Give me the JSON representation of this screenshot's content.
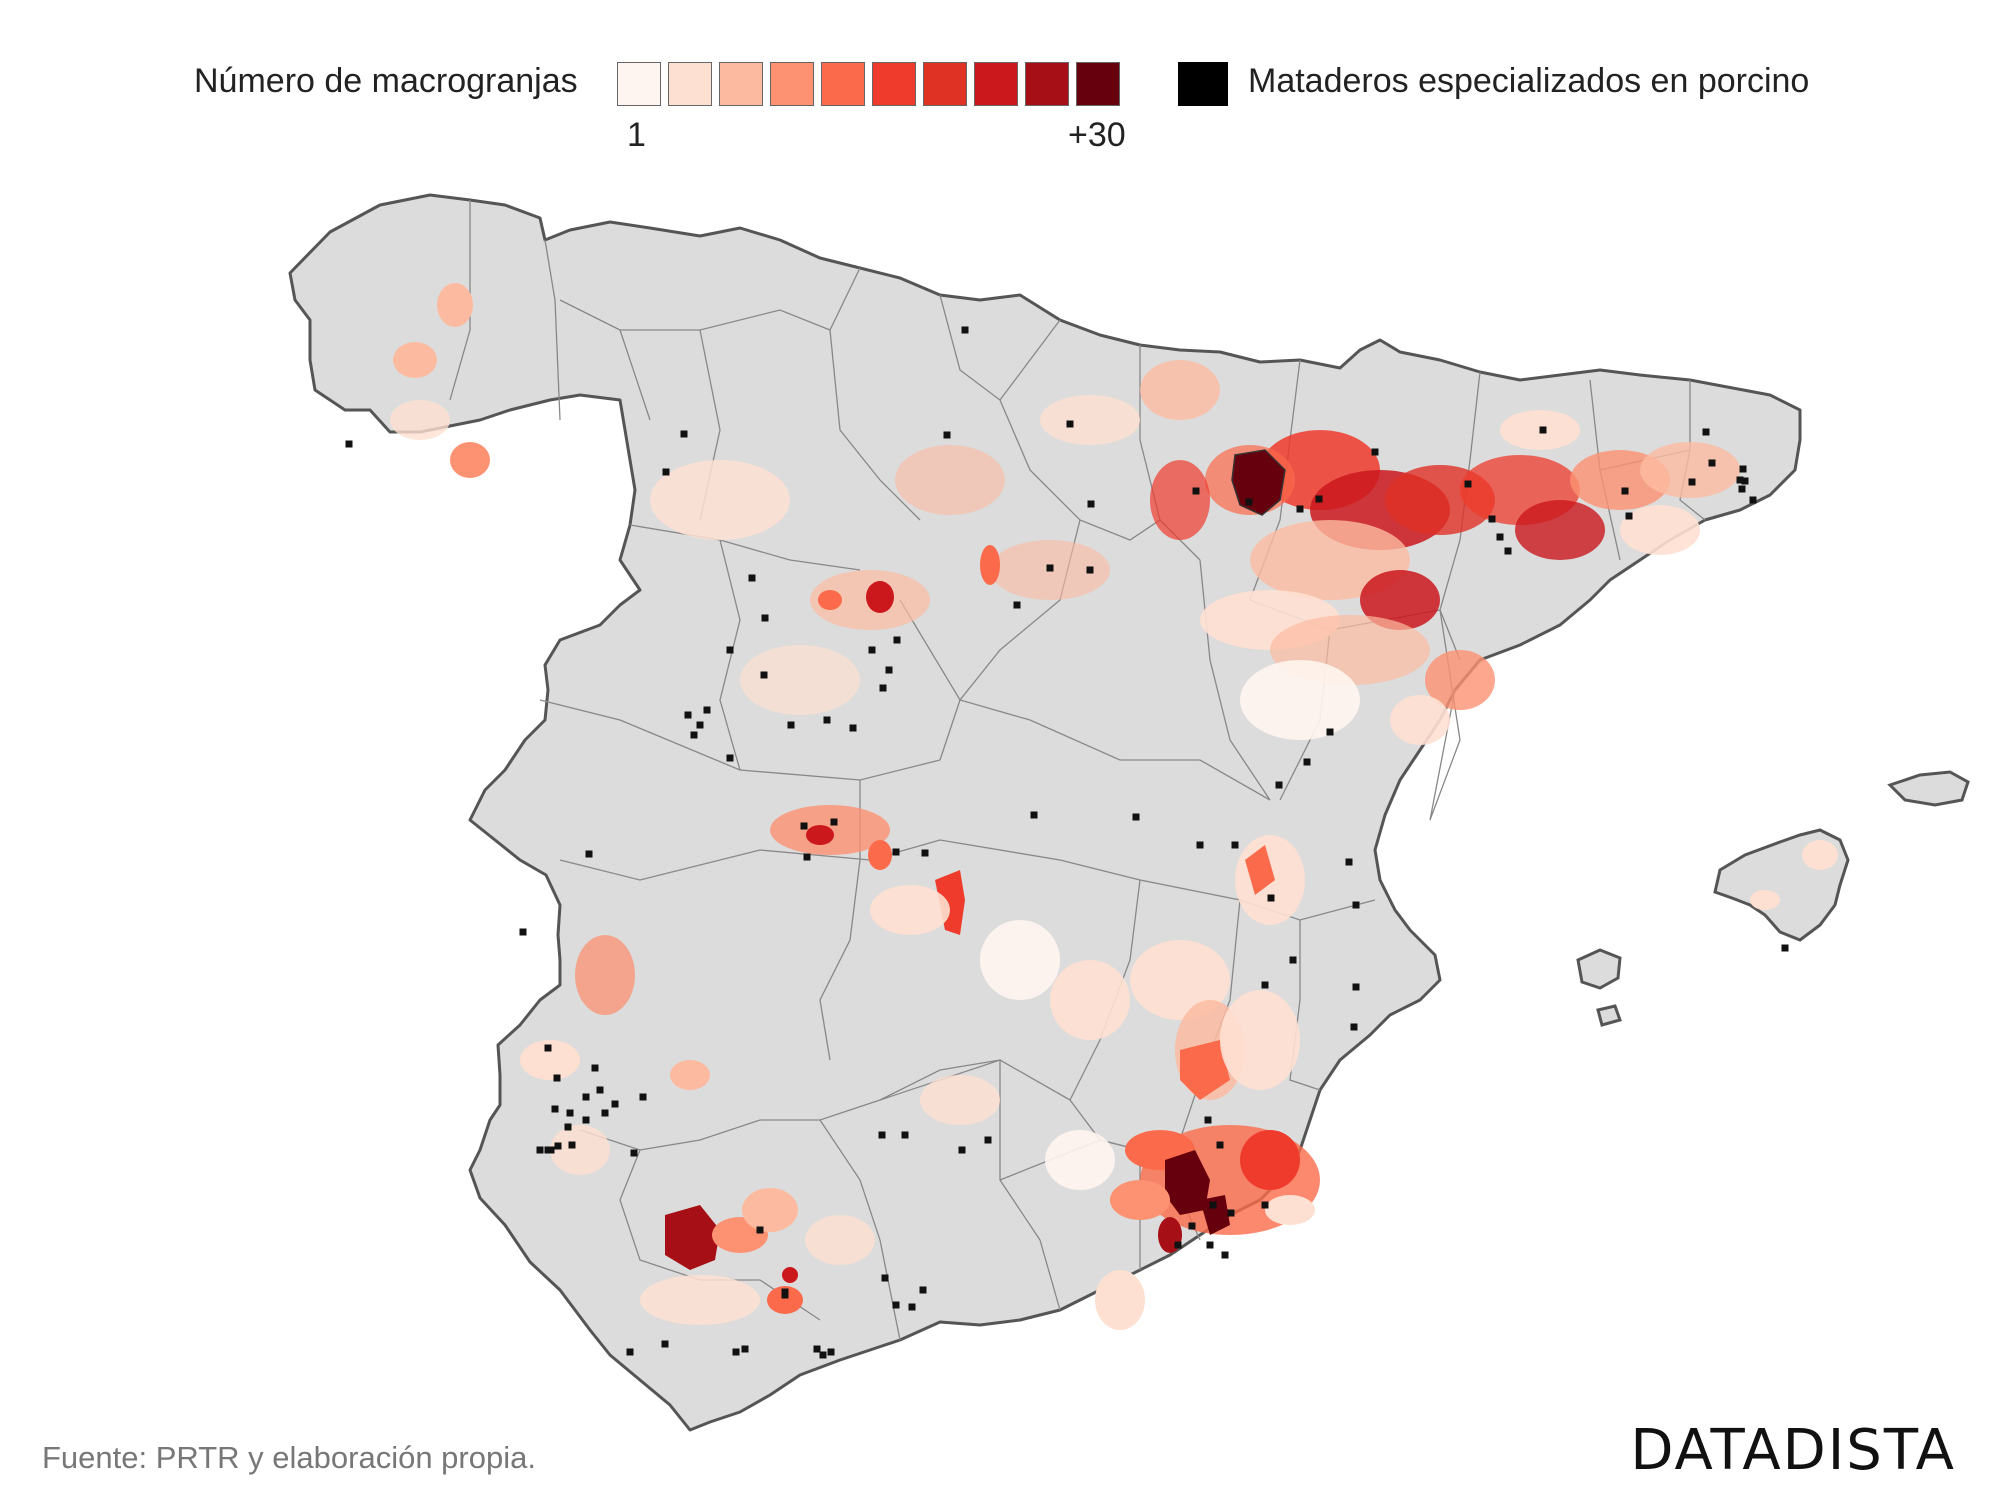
{
  "legend": {
    "farms_title": "Número de macrogranjas",
    "min_label": "1",
    "max_label": "+30",
    "ramp_colors": [
      "#fff5f0",
      "#fee0d2",
      "#fcbba1",
      "#fc9272",
      "#fb6a4a",
      "#ef3b2c",
      "#e03125",
      "#cb181d",
      "#a50f15",
      "#67000d"
    ],
    "slaughterhouse_label": "Mataderos especializados en porcino",
    "slaughterhouse_color": "#000000"
  },
  "map": {
    "land_color": "#dcdcdc",
    "border_color": "#555555",
    "province_line_color": "#888888"
  },
  "footer": {
    "source": "Fuente: PRTR y elaboración propia.",
    "brand": "DATADISTA"
  }
}
